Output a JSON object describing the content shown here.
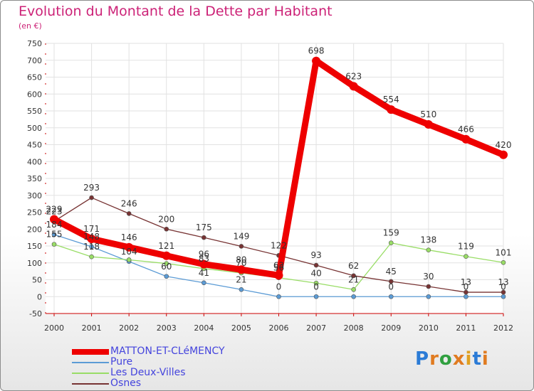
{
  "chart_data": {
    "type": "line",
    "title": "Evolution du Montant de la Dette par Habitant",
    "subtitle": "(en €)",
    "xlabel": "",
    "ylabel": "",
    "categories": [
      "2000",
      "2001",
      "2002",
      "2003",
      "2004",
      "2005",
      "2006",
      "2007",
      "2008",
      "2009",
      "2010",
      "2011",
      "2012"
    ],
    "ylim": [
      -50,
      750
    ],
    "yticks": [
      -50,
      0,
      50,
      100,
      150,
      200,
      250,
      300,
      350,
      400,
      450,
      500,
      550,
      600,
      650,
      700,
      750
    ],
    "series": [
      {
        "name": "MATTON-ET-CLéMENCY",
        "color": "#ee0000",
        "values": [
          229,
          171,
          146,
          121,
          96,
          80,
          63,
          698,
          623,
          554,
          510,
          466,
          420
        ],
        "labels": [
          "229",
          "171",
          "146",
          "121",
          "96",
          "80",
          "63",
          "698",
          "623",
          "554",
          "510",
          "466",
          "420"
        ]
      },
      {
        "name": "Pure",
        "color": "#5b9bd5",
        "values": [
          184,
          148,
          104,
          60,
          41,
          21,
          0,
          0,
          0,
          0,
          0,
          0,
          0
        ],
        "labels": [
          "184",
          "148",
          "104",
          "60",
          "41",
          "21",
          "0",
          "0",
          "",
          "0",
          "",
          "0",
          "0"
        ]
      },
      {
        "name": "Les Deux-Villes",
        "color": "#99dd66",
        "values": [
          155,
          118,
          109,
          98,
          83,
          70,
          56,
          40,
          21,
          159,
          138,
          119,
          101
        ],
        "labels": [
          "155",
          "118",
          "",
          "",
          "83",
          "70",
          "56",
          "40",
          "21",
          "159",
          "138",
          "119",
          "101"
        ]
      },
      {
        "name": "Osnes",
        "color": "#773333",
        "values": [
          223,
          293,
          246,
          200,
          175,
          149,
          122,
          93,
          62,
          45,
          30,
          13,
          13
        ],
        "labels": [
          "223",
          "293",
          "246",
          "200",
          "175",
          "149",
          "122",
          "93",
          "62",
          "45",
          "30",
          "13",
          "13"
        ]
      }
    ]
  },
  "logo": {
    "text": "Proxiti",
    "letters": [
      "P",
      "r",
      "o",
      "x",
      "i",
      "t",
      "i"
    ],
    "colors": [
      "#2b7bd6",
      "#e07b20",
      "#30a040",
      "#e07b20",
      "#e0a020",
      "#2b7bd6",
      "#e07b20"
    ]
  }
}
